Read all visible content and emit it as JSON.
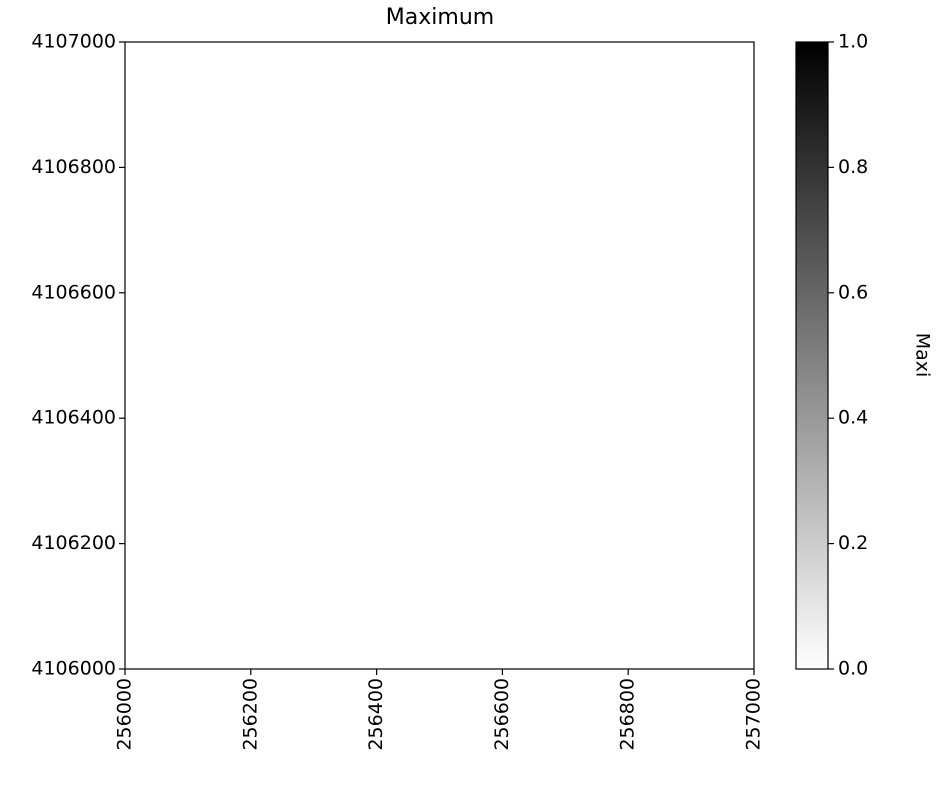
{
  "chart_data": {
    "type": "image",
    "title": "Maximum",
    "xlim": [
      256000,
      257000
    ],
    "xticks": [
      256000,
      256200,
      256400,
      256600,
      256800,
      257000
    ],
    "ylim": [
      4106000,
      4107000
    ],
    "yticks": [
      4106000,
      4106200,
      4106400,
      4106600,
      4106800,
      4107000
    ],
    "colorbar": {
      "label": "Maxi",
      "lim": [
        0,
        1
      ],
      "colors": [
        "#ffffff",
        "#000000"
      ],
      "ticks": [
        {
          "value": 0,
          "label": "0.0"
        },
        0.2,
        0.4,
        0.6,
        0.8,
        {
          "value": 1,
          "label": "1.0"
        }
      ]
    },
    "grid": false
  }
}
